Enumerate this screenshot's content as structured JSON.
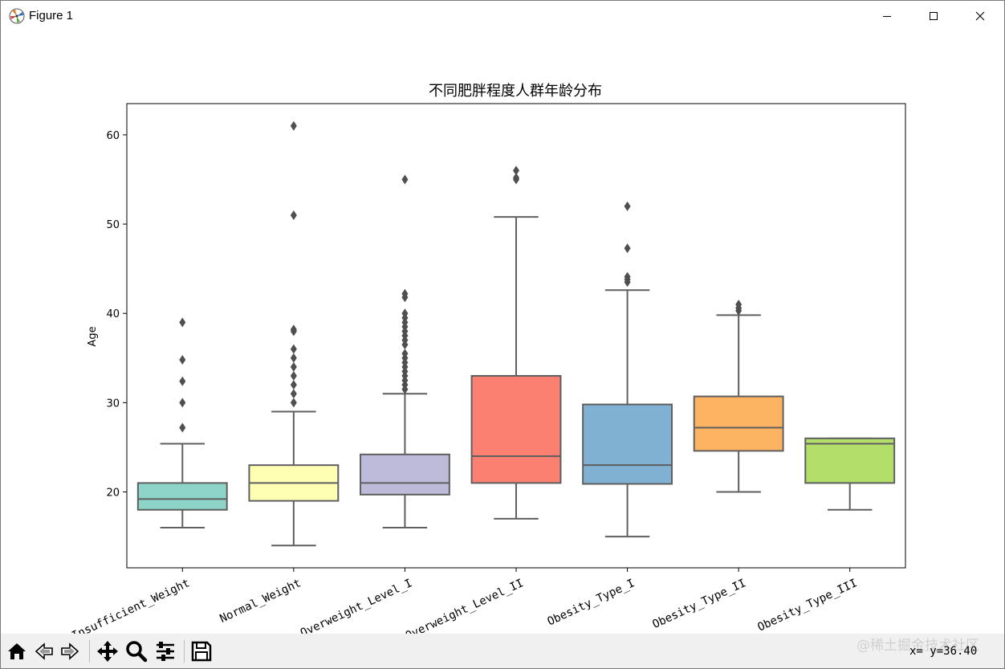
{
  "window": {
    "title": "Figure 1",
    "app_icon": "matplotlib-logo-icon",
    "controls": [
      "minimize-icon",
      "maximize-icon",
      "close-icon"
    ]
  },
  "toolbar": {
    "buttons": [
      "home-icon",
      "back-icon",
      "forward-icon",
      "pan-icon",
      "zoom-icon",
      "configure-subplots-icon",
      "save-icon"
    ],
    "coordinates": "x=  y=36.40",
    "watermark": "@稀土掘金技术社区"
  },
  "chart_data": {
    "type": "box",
    "title": "不同肥胖程度人群年龄分布",
    "xlabel": "",
    "ylabel": "Age",
    "ylim": [
      11.5,
      63.5
    ],
    "yticks": [
      20,
      30,
      40,
      50,
      60
    ],
    "grid": false,
    "categories": [
      "Insufficient_Weight",
      "Normal_Weight",
      "Overweight_Level_I",
      "Overweight_Level_II",
      "Obesity_Type_I",
      "Obesity_Type_II",
      "Obesity_Type_III"
    ],
    "colors": [
      "#8dd3c7",
      "#ffffb3",
      "#bebada",
      "#fb8072",
      "#80b1d3",
      "#fdb462",
      "#b3de69"
    ],
    "boxes": [
      {
        "whislo": 16,
        "q1": 18,
        "med": 19.2,
        "q3": 21,
        "whishi": 25.4,
        "fliers": [
          27.2,
          30,
          32.4,
          34.8,
          39
        ]
      },
      {
        "whislo": 14,
        "q1": 19,
        "med": 21,
        "q3": 23,
        "whishi": 29,
        "fliers": [
          30,
          31,
          32,
          33,
          34,
          35,
          36,
          38,
          38.2,
          51,
          61
        ]
      },
      {
        "whislo": 16,
        "q1": 19.7,
        "med": 21,
        "q3": 24.2,
        "whishi": 31,
        "fliers": [
          31.5,
          32,
          32.5,
          33,
          33.5,
          34,
          34.5,
          35,
          35.5,
          36.5,
          37,
          37.5,
          38,
          38.5,
          39,
          39.5,
          40,
          41.8,
          42.2,
          55
        ]
      },
      {
        "whislo": 17,
        "q1": 21,
        "med": 24,
        "q3": 33,
        "whishi": 50.8,
        "fliers": [
          55,
          55.2,
          56
        ]
      },
      {
        "whislo": 15,
        "q1": 20.9,
        "med": 23,
        "q3": 29.8,
        "whishi": 42.6,
        "fliers": [
          43.5,
          43.8,
          44.1,
          47.3,
          52
        ]
      },
      {
        "whislo": 20,
        "q1": 24.6,
        "med": 27.2,
        "q3": 30.7,
        "whishi": 39.8,
        "fliers": [
          40.3,
          40.6,
          41
        ]
      },
      {
        "whislo": 18,
        "q1": 21,
        "med": 25.4,
        "q3": 26,
        "whishi": 26,
        "fliers": []
      }
    ]
  }
}
